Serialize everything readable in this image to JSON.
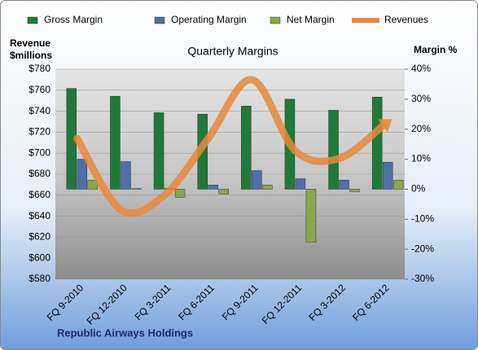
{
  "chart_data": {
    "type": "bar",
    "title": "Quarterly Margins",
    "ylabel": [
      "Revenue",
      "$millions"
    ],
    "y2label": "Margin %",
    "annotation": "Republic Airways Holdings",
    "categories": [
      "FQ 9-2010",
      "FQ 12-2010",
      "FQ 3-2011",
      "FQ 6-2011",
      "FQ 9-2011",
      "FQ 12-2011",
      "FQ 3-2012",
      "FQ 6-2012"
    ],
    "series": [
      {
        "name": "Gross Margin",
        "type": "bar",
        "axis": "y2",
        "color": "#1f7a3a",
        "values": [
          33.6,
          31,
          25.5,
          25,
          27.7,
          30,
          26.3,
          30.7
        ]
      },
      {
        "name": "Operating Margin",
        "type": "bar",
        "axis": "y2",
        "color": "#4f6fa8",
        "values": [
          10,
          9.2,
          0.3,
          1.4,
          6.2,
          3.5,
          3,
          9
        ]
      },
      {
        "name": "Net Margin",
        "type": "bar",
        "axis": "y2",
        "color": "#8aa84a",
        "values": [
          3,
          0.2,
          -2.7,
          -1.6,
          1.4,
          -17.6,
          -0.8,
          3
        ]
      },
      {
        "name": "Revenues",
        "type": "line",
        "color": "#e8883a",
        "values": [
          714,
          646,
          660,
          714,
          770,
          702,
          695,
          726
        ]
      }
    ],
    "ylim": [
      580,
      780
    ],
    "yticks": [
      {
        "value": 580,
        "label": "$580"
      },
      {
        "value": 600,
        "label": "$600"
      },
      {
        "value": 620,
        "label": "$620"
      },
      {
        "value": 640,
        "label": "$640"
      },
      {
        "value": 660,
        "label": "$660"
      },
      {
        "value": 680,
        "label": "$680"
      },
      {
        "value": 700,
        "label": "$700"
      },
      {
        "value": 720,
        "label": "$720"
      },
      {
        "value": 740,
        "label": "$740"
      },
      {
        "value": 760,
        "label": "$760"
      },
      {
        "value": 780,
        "label": "$780"
      }
    ],
    "y2lim": [
      -30,
      40
    ],
    "y2ticks": [
      {
        "value": -30,
        "label": "-30%"
      },
      {
        "value": -20,
        "label": "-20%"
      },
      {
        "value": -10,
        "label": "-10%"
      },
      {
        "value": 0,
        "label": "0%"
      },
      {
        "value": 10,
        "label": "10%"
      },
      {
        "value": 20,
        "label": "20%"
      },
      {
        "value": 30,
        "label": "30%"
      },
      {
        "value": 40,
        "label": "40%"
      }
    ],
    "grid": true,
    "legend": "top"
  }
}
